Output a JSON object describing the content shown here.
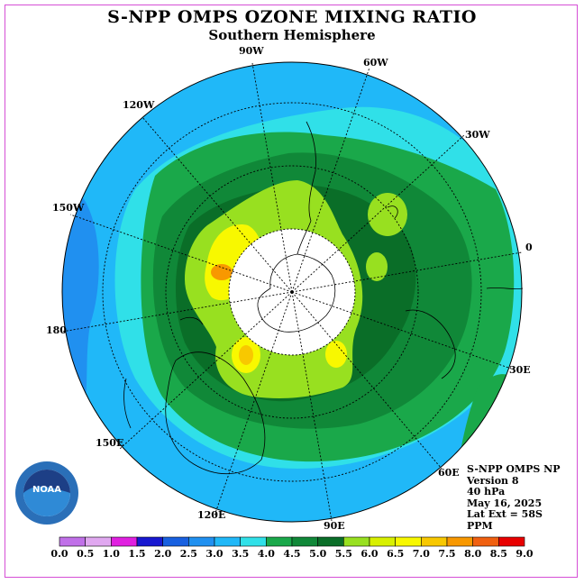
{
  "title": "S-NPP OMPS OZONE MIXING RATIO",
  "subtitle": "Southern Hemisphere",
  "longitude_labels": [
    "90W",
    "60W",
    "30W",
    "0",
    "30E",
    "60E",
    "90E",
    "120E",
    "150E",
    "180",
    "150W",
    "120W"
  ],
  "info": {
    "instrument": "S-NPP OMPS NP",
    "version": "Version 8",
    "level": "40 hPa",
    "date": "May 16, 2025",
    "lat_ext": "Lat Ext = 58S",
    "units": "PPM"
  },
  "colorbar": {
    "labels": [
      "0.0",
      "0.5",
      "1.0",
      "1.5",
      "2.0",
      "2.5",
      "3.0",
      "3.5",
      "4.0",
      "4.5",
      "5.0",
      "5.5",
      "6.0",
      "6.5",
      "7.0",
      "7.5",
      "8.0",
      "8.5",
      "9.0"
    ],
    "colors": [
      "#c070e8",
      "#e0a8f0",
      "#e020e0",
      "#1818d0",
      "#1860e0",
      "#2090f0",
      "#20b8f8",
      "#30e0e8",
      "#1aa84a",
      "#108838",
      "#0a6e28",
      "#98e020",
      "#d8f000",
      "#f8f800",
      "#f8c800",
      "#f89800",
      "#f06010",
      "#e80000",
      "#8b5a3c"
    ]
  },
  "logo": {
    "text": "NOAA"
  }
}
